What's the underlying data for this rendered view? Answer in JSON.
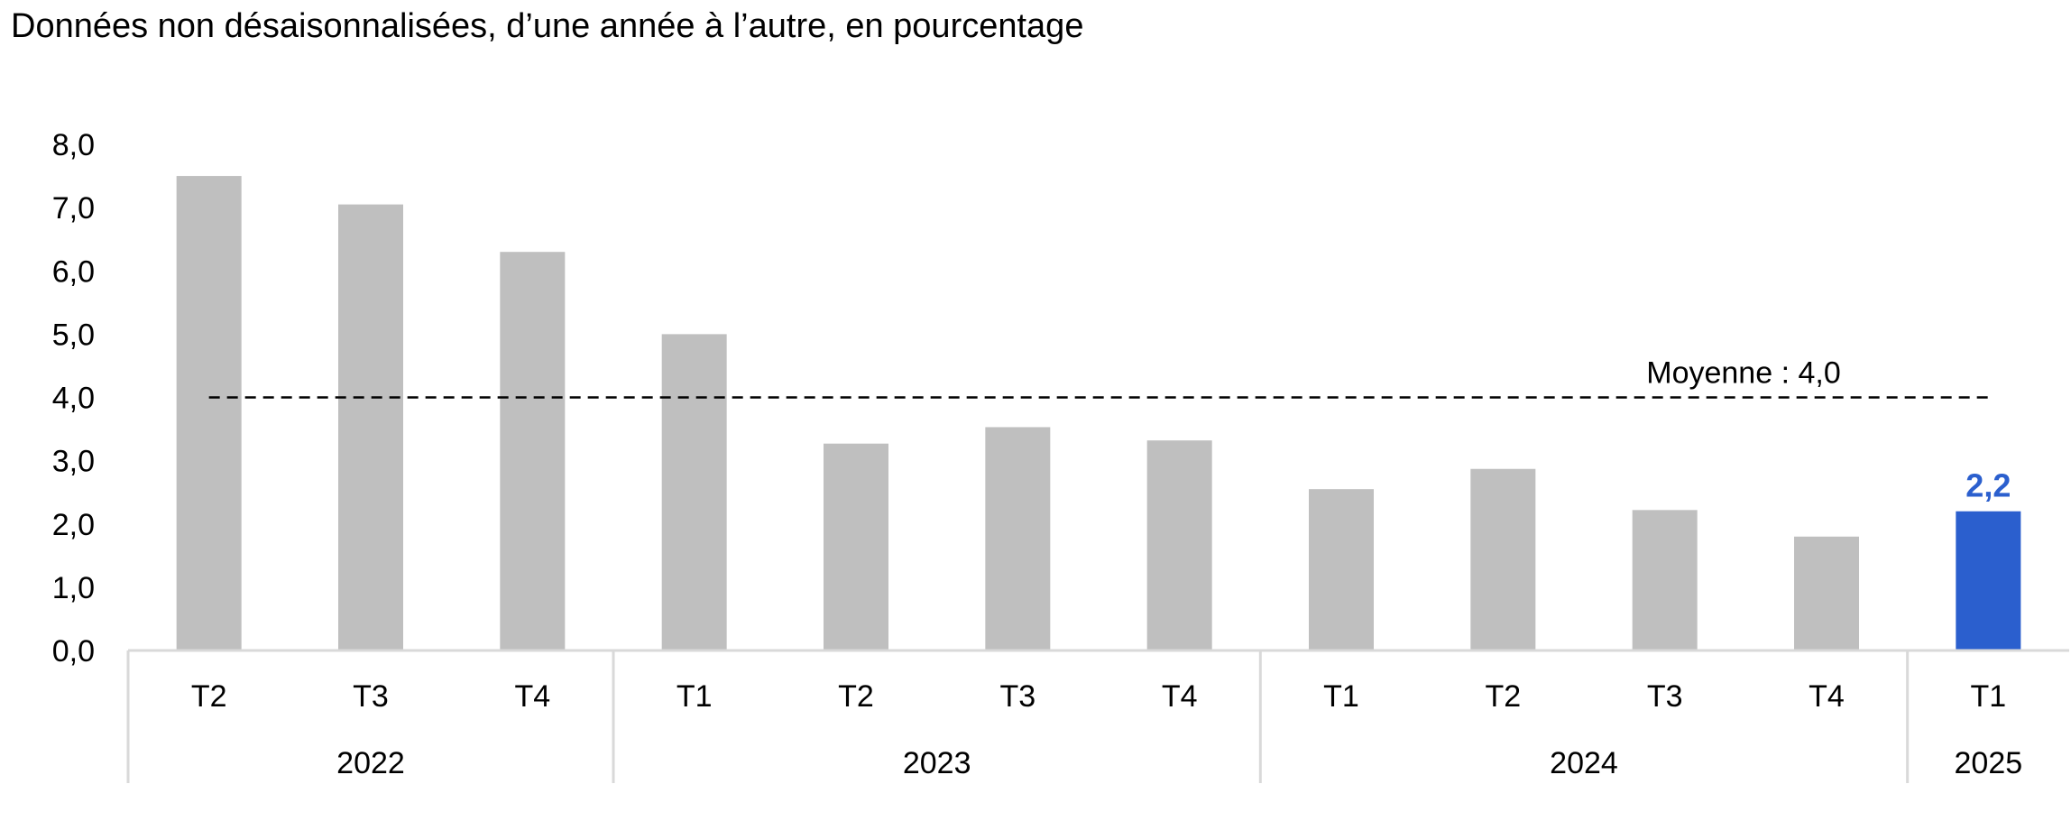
{
  "subtitle": "Données non désaisonnalisées, d’une année à l’autre, en pourcentage",
  "chart_data": {
    "type": "bar",
    "title": "",
    "xlabel": "",
    "ylabel": "",
    "ylim": [
      0,
      8
    ],
    "yticks": [
      "0,0",
      "1,0",
      "2,0",
      "3,0",
      "4,0",
      "5,0",
      "6,0",
      "7,0",
      "8,0"
    ],
    "grid": false,
    "categories": [
      "T2",
      "T3",
      "T4",
      "T1",
      "T2",
      "T3",
      "T4",
      "T1",
      "T2",
      "T3",
      "T4",
      "T1"
    ],
    "groups": [
      {
        "label": "2022",
        "count": 3
      },
      {
        "label": "2023",
        "count": 4
      },
      {
        "label": "2024",
        "count": 4
      },
      {
        "label": "2025",
        "count": 1
      }
    ],
    "values": [
      7.5,
      7.05,
      6.3,
      5.0,
      3.27,
      3.53,
      3.32,
      2.55,
      2.87,
      2.22,
      1.8,
      2.2
    ],
    "highlight_index": 11,
    "data_labels": [
      {
        "index": 11,
        "text": "2,2"
      }
    ],
    "reference_line": {
      "value": 4.0,
      "label": "Moyenne : 4,0",
      "style": "dashed"
    },
    "colors": {
      "bar": "#bfbfbf",
      "highlight": "#2b5fce",
      "reference_line": "#000000",
      "axis": "#d9d9d9"
    }
  }
}
